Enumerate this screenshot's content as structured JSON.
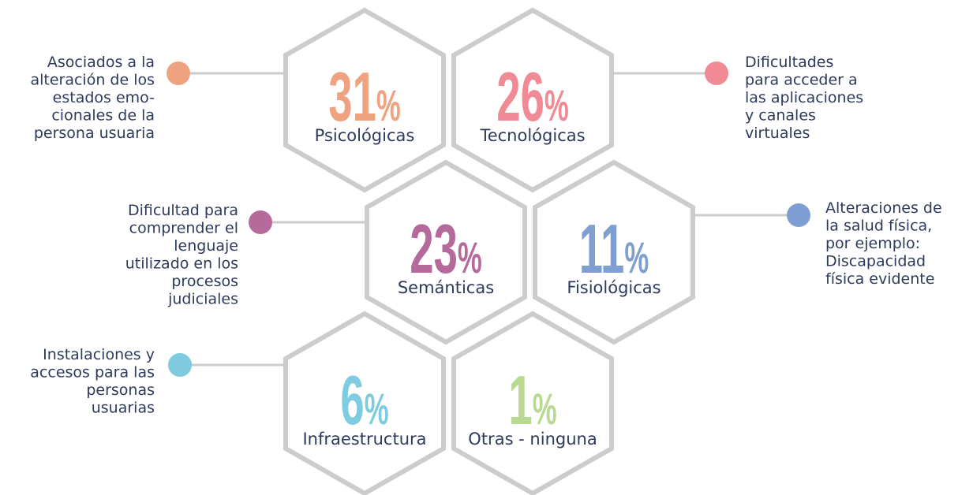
{
  "items": [
    {
      "value": 31,
      "unit": "%",
      "label": "Psicológicas",
      "color": "#eea27f",
      "description": [
        "Asociados a la",
        "alteración de los",
        "estados emo-",
        "cionales de la",
        "persona usuaria"
      ]
    },
    {
      "value": 26,
      "unit": "%",
      "label": "Tecnológicas",
      "color": "#f08a94",
      "description": [
        "Dificultades",
        "para acceder a",
        "las aplicaciones",
        "y canales",
        "virtuales"
      ]
    },
    {
      "value": 23,
      "unit": "%",
      "label": "Semánticas",
      "color": "#b56a9b",
      "description": [
        "Dificultad para",
        "comprender el",
        "lenguaje",
        "utilizado en los",
        "procesos",
        "judiciales"
      ]
    },
    {
      "value": 11,
      "unit": "%",
      "label": "Fisiológicas",
      "color": "#7f9fd2",
      "description": [
        "Alteraciones de",
        "la salud física,",
        "por ejemplo:",
        "Discapacidad",
        "física evidente"
      ]
    },
    {
      "value": 6,
      "unit": "%",
      "label": "Infraestructura",
      "color": "#7fcbe0",
      "description": [
        "Instalaciones y",
        "accesos para las",
        "personas",
        "usuarias"
      ]
    },
    {
      "value": 1,
      "unit": "%",
      "label": "Otras - ninguna",
      "color": "#b8d98f",
      "description": []
    }
  ]
}
